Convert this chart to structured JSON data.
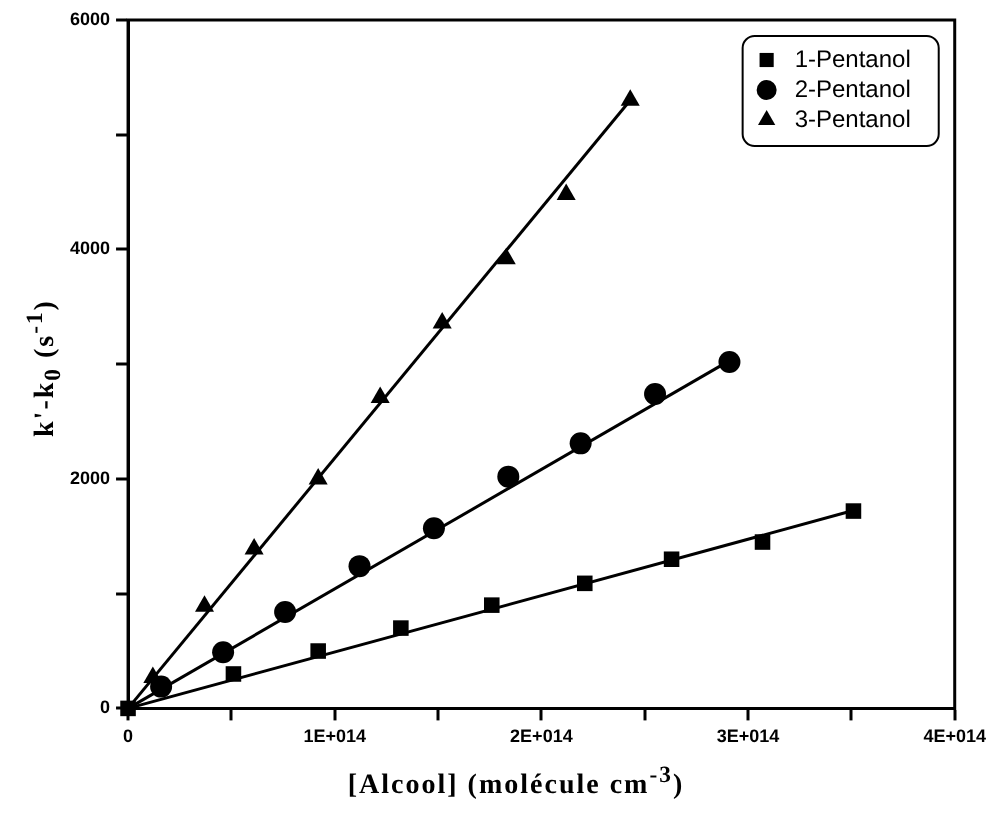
{
  "chart_data": {
    "type": "scatter",
    "xlabel": "[Alcool] (molécule cm$^{-3}$)",
    "ylabel": "k'-k$_{0}$ (s$^{-1}$)",
    "xlim": [
      0,
      400000000000000.0
    ],
    "xticks": [
      {
        "value": 0,
        "label": "0"
      },
      {
        "value": 50000000000000.0,
        "label": null
      },
      {
        "value": 100000000000000.0,
        "label": "1E+014"
      },
      {
        "value": 150000000000000.0,
        "label": null
      },
      {
        "value": 200000000000000.0,
        "label": "2E+014"
      },
      {
        "value": 250000000000000.0,
        "label": null
      },
      {
        "value": 300000000000000.0,
        "label": "3E+014"
      },
      {
        "value": 350000000000000.0,
        "label": null
      },
      {
        "value": 400000000000000.0,
        "label": "4E+014"
      }
    ],
    "ylim": [
      0,
      6000
    ],
    "yticks": [
      0,
      {
        "value": 1000,
        "label": null
      },
      2000,
      {
        "value": 3000,
        "label": null
      },
      4000,
      {
        "value": 5000,
        "label": null
      },
      6000
    ],
    "grid": false,
    "legend": "top right",
    "series": [
      {
        "name": "1-Pentanol",
        "color": "#000000",
        "marker": "square",
        "x": [
          0,
          51000000000000.0,
          92000000000000.0,
          132000000000000.0,
          176000000000000.0,
          221000000000000.0,
          263000000000000.0,
          307000000000000.0,
          351000000000000.0
        ],
        "values": [
          0,
          300,
          500,
          700,
          900,
          1090,
          1300,
          1450,
          1720
        ]
      },
      {
        "name": "2-Pentanol",
        "color": "#000000",
        "marker": "circle",
        "x": [
          16000000000000.0,
          46000000000000.0,
          76000000000000.0,
          112000000000000.0,
          148000000000000.0,
          184000000000000.0,
          219000000000000.0,
          255000000000000.0,
          291000000000000.0
        ],
        "values": [
          190,
          490,
          840,
          1240,
          1570,
          2020,
          2310,
          2740,
          3020
        ]
      },
      {
        "name": "3-Pentanol",
        "color": "#000000",
        "marker": "triangle",
        "x": [
          12000000000000.0,
          37000000000000.0,
          61000000000000.0,
          92000000000000.0,
          122000000000000.0,
          152000000000000.0,
          183000000000000.0,
          212000000000000.0,
          243000000000000.0
        ],
        "values": [
          270,
          890,
          1390,
          2000,
          2710,
          3360,
          3920,
          4480,
          5300
        ]
      },
      {
        "type": "line",
        "color": "#000000",
        "marker": "none",
        "x": [
          0,
          350000000000000.0
        ],
        "values": [
          0,
          1720
        ]
      },
      {
        "type": "line",
        "color": "#000000",
        "marker": "none",
        "x": [
          0,
          290000000000000.0
        ],
        "values": [
          0,
          3020
        ]
      },
      {
        "type": "line",
        "color": "#000000",
        "marker": "none",
        "x": [
          0,
          243000000000000.0
        ],
        "values": [
          0,
          5300
        ]
      }
    ]
  }
}
